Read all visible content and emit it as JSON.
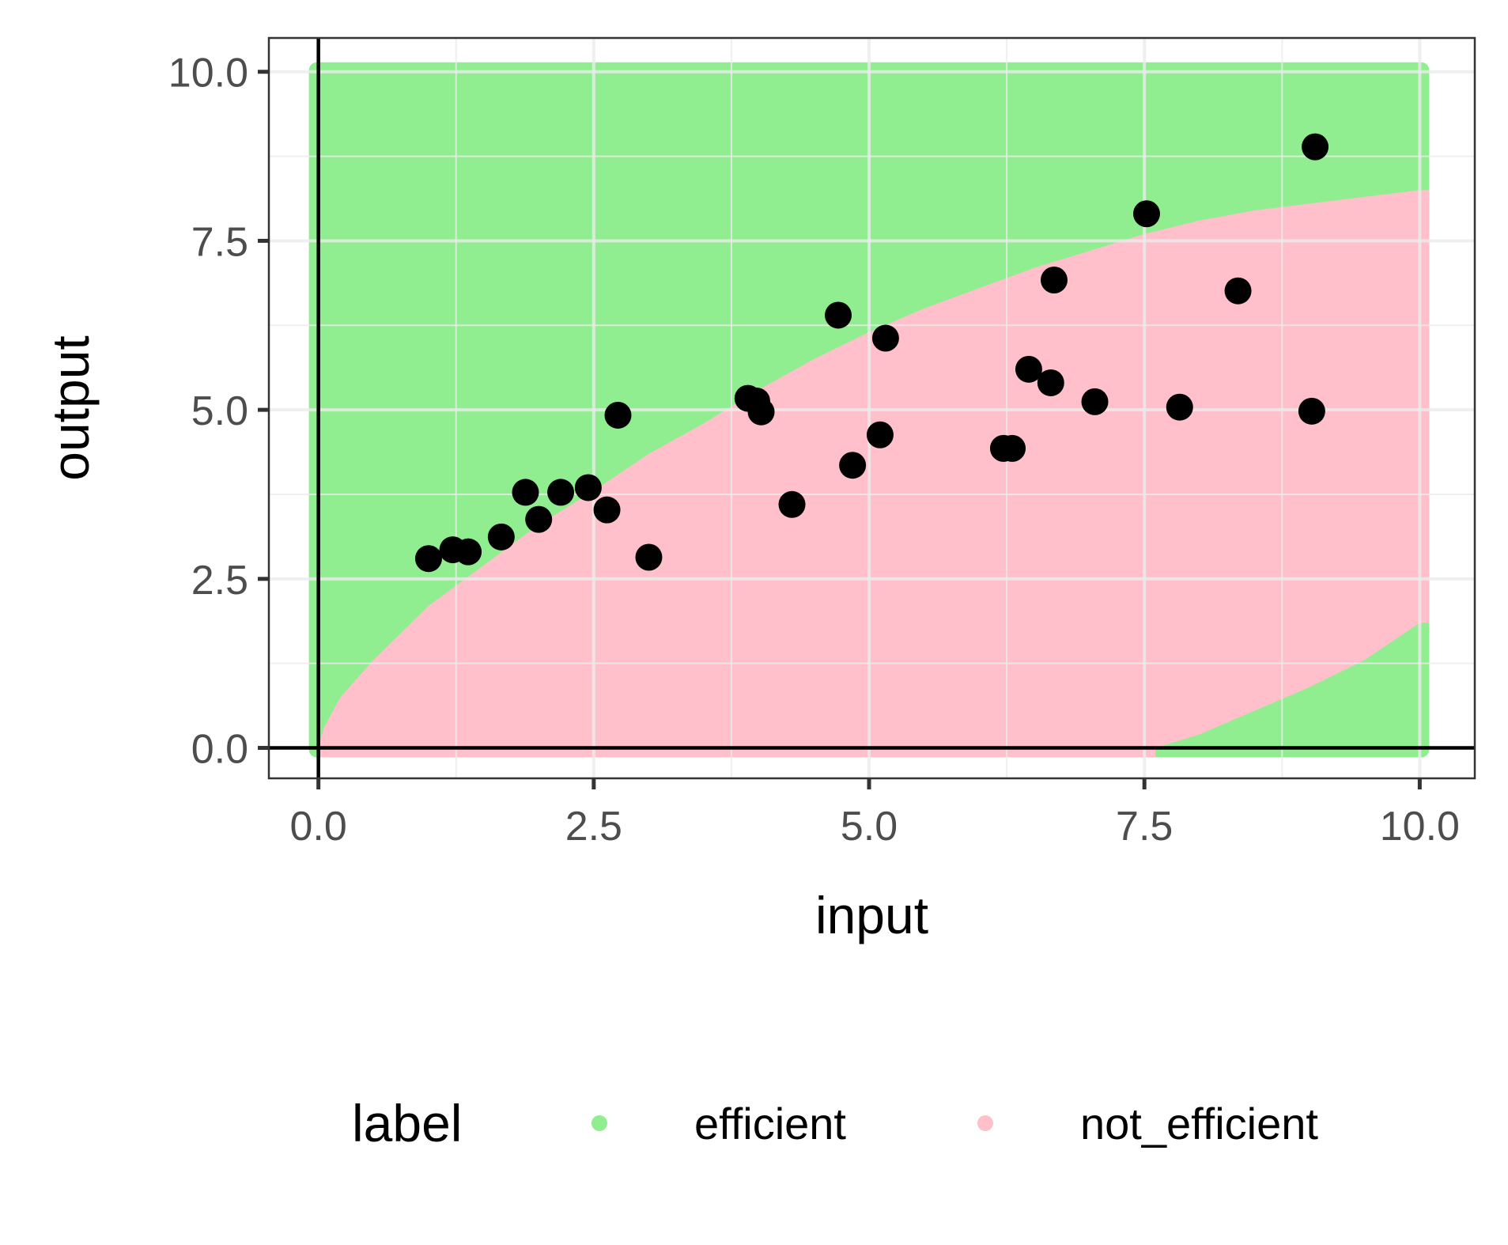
{
  "chart_data": {
    "type": "scatter",
    "xlabel": "input",
    "ylabel": "output",
    "xlim": [
      -0.45,
      10.5
    ],
    "ylim": [
      -0.45,
      10.5
    ],
    "x_ticks": [
      0.0,
      2.5,
      5.0,
      7.5,
      10.0
    ],
    "y_ticks": [
      0.0,
      2.5,
      5.0,
      7.5,
      10.0
    ],
    "x_tick_labels": [
      "0.0",
      "2.5",
      "5.0",
      "7.5",
      "10.0"
    ],
    "y_tick_labels": [
      "0.0",
      "2.5",
      "5.0",
      "7.5",
      "10.0"
    ],
    "grid": true,
    "reference_lines": {
      "x": 0,
      "y": 0
    },
    "background_regions": {
      "x_range": [
        0,
        10
      ],
      "y_range": [
        0,
        10
      ],
      "upper_boundary": [
        [
          0,
          0
        ],
        [
          0.05,
          0.3
        ],
        [
          0.2,
          0.75
        ],
        [
          0.5,
          1.3
        ],
        [
          1,
          2.1
        ],
        [
          1.5,
          2.7
        ],
        [
          2,
          3.3
        ],
        [
          2.5,
          3.8
        ],
        [
          3,
          4.35
        ],
        [
          3.5,
          4.8
        ],
        [
          4,
          5.3
        ],
        [
          4.5,
          5.75
        ],
        [
          5,
          6.15
        ],
        [
          5.5,
          6.5
        ],
        [
          6,
          6.8
        ],
        [
          6.5,
          7.1
        ],
        [
          7,
          7.35
        ],
        [
          7.5,
          7.6
        ],
        [
          8,
          7.8
        ],
        [
          8.5,
          7.95
        ],
        [
          9,
          8.05
        ],
        [
          9.5,
          8.15
        ],
        [
          10,
          8.25
        ]
      ],
      "lower_boundary": [
        [
          7.6,
          0
        ],
        [
          8,
          0.2
        ],
        [
          8.5,
          0.55
        ],
        [
          9,
          0.9
        ],
        [
          9.5,
          1.3
        ],
        [
          10,
          1.85
        ]
      ]
    },
    "legend": {
      "title": "label",
      "position": "bottom",
      "entries": [
        {
          "name": "efficient",
          "color": "#90EE90"
        },
        {
          "name": "not_efficient",
          "color": "#FFC0CB"
        }
      ]
    },
    "points": [
      {
        "x": 1.0,
        "y": 2.8
      },
      {
        "x": 1.22,
        "y": 2.93
      },
      {
        "x": 1.36,
        "y": 2.9
      },
      {
        "x": 1.66,
        "y": 3.12
      },
      {
        "x": 1.88,
        "y": 3.78
      },
      {
        "x": 2.0,
        "y": 3.38
      },
      {
        "x": 2.2,
        "y": 3.78
      },
      {
        "x": 2.45,
        "y": 3.85
      },
      {
        "x": 2.62,
        "y": 3.52
      },
      {
        "x": 2.72,
        "y": 4.92
      },
      {
        "x": 3.0,
        "y": 2.82
      },
      {
        "x": 3.9,
        "y": 5.17
      },
      {
        "x": 3.98,
        "y": 5.13
      },
      {
        "x": 4.02,
        "y": 4.97
      },
      {
        "x": 4.3,
        "y": 3.6
      },
      {
        "x": 4.72,
        "y": 6.4
      },
      {
        "x": 4.85,
        "y": 4.18
      },
      {
        "x": 5.1,
        "y": 4.63
      },
      {
        "x": 5.15,
        "y": 6.06
      },
      {
        "x": 6.22,
        "y": 4.43
      },
      {
        "x": 6.3,
        "y": 4.43
      },
      {
        "x": 6.45,
        "y": 5.6
      },
      {
        "x": 6.65,
        "y": 5.4
      },
      {
        "x": 6.68,
        "y": 6.92
      },
      {
        "x": 7.05,
        "y": 5.12
      },
      {
        "x": 7.52,
        "y": 7.9
      },
      {
        "x": 7.82,
        "y": 5.04
      },
      {
        "x": 8.35,
        "y": 6.76
      },
      {
        "x": 9.02,
        "y": 4.98
      },
      {
        "x": 9.05,
        "y": 8.89
      }
    ]
  }
}
